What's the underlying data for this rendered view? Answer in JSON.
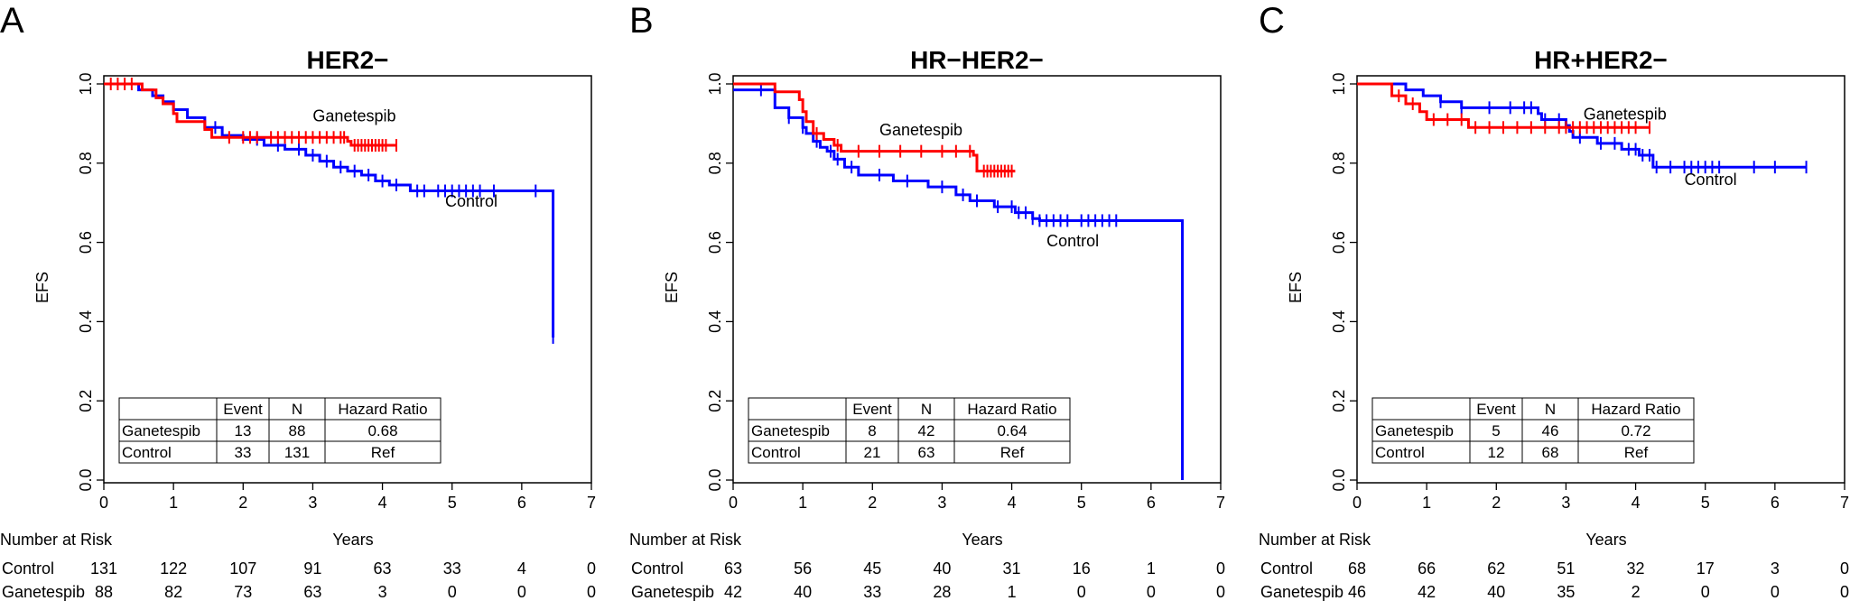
{
  "chart_data": [
    {
      "type": "line",
      "panel_label": "A",
      "title": "HER2−",
      "xlabel": "Years",
      "ylabel": "EFS",
      "xlim": [
        0,
        7
      ],
      "ylim": [
        0,
        1
      ],
      "x_ticks": [
        "0",
        "1",
        "2",
        "3",
        "4",
        "5",
        "6",
        "7"
      ],
      "y_ticks": [
        "0.0",
        "0.2",
        "0.4",
        "0.6",
        "0.8",
        "1.0"
      ],
      "colors": {
        "Control": "#0000ff",
        "Ganetespib": "#ff0000"
      },
      "series": [
        {
          "name": "Control",
          "steps": [
            [
              0,
              1.0
            ],
            [
              0.5,
              0.985
            ],
            [
              0.7,
              0.97
            ],
            [
              0.85,
              0.955
            ],
            [
              1.0,
              0.935
            ],
            [
              1.2,
              0.915
            ],
            [
              1.45,
              0.89
            ],
            [
              1.7,
              0.87
            ],
            [
              2.0,
              0.86
            ],
            [
              2.3,
              0.845
            ],
            [
              2.6,
              0.835
            ],
            [
              2.9,
              0.82
            ],
            [
              3.1,
              0.805
            ],
            [
              3.3,
              0.79
            ],
            [
              3.5,
              0.78
            ],
            [
              3.7,
              0.77
            ],
            [
              3.9,
              0.755
            ],
            [
              4.1,
              0.745
            ],
            [
              4.4,
              0.73
            ],
            [
              6.45,
              0.73
            ],
            [
              6.45,
              0.36
            ]
          ],
          "censor": [
            1.6,
            2.2,
            2.5,
            2.8,
            3.0,
            3.2,
            3.4,
            3.6,
            3.8,
            4.0,
            4.2,
            4.5,
            4.6,
            4.8,
            4.9,
            5.0,
            5.1,
            5.2,
            5.3,
            5.4,
            5.6,
            6.2,
            6.45
          ]
        },
        {
          "name": "Ganetespib",
          "steps": [
            [
              0,
              1.0
            ],
            [
              0.55,
              0.985
            ],
            [
              0.75,
              0.965
            ],
            [
              0.85,
              0.95
            ],
            [
              1.0,
              0.925
            ],
            [
              1.05,
              0.905
            ],
            [
              1.45,
              0.885
            ],
            [
              1.55,
              0.865
            ],
            [
              3.5,
              0.855
            ],
            [
              3.55,
              0.845
            ],
            [
              4.2,
              0.845
            ]
          ],
          "censor": [
            0.1,
            0.2,
            0.3,
            0.4,
            1.8,
            2.0,
            2.1,
            2.2,
            2.4,
            2.5,
            2.6,
            2.7,
            2.8,
            2.9,
            3.0,
            3.1,
            3.2,
            3.3,
            3.4,
            3.45,
            3.6,
            3.65,
            3.7,
            3.75,
            3.8,
            3.85,
            3.9,
            3.95,
            4.0,
            4.05,
            4.2
          ]
        }
      ],
      "annotations": [
        {
          "text": "Ganetespib",
          "x": 3.0,
          "y": 0.905
        },
        {
          "text": "Control",
          "x": 4.9,
          "y": 0.69
        }
      ],
      "table": {
        "headers": [
          "",
          "Event",
          "N",
          "Hazard Ratio"
        ],
        "rows": [
          [
            "Ganetespib",
            "13",
            "88",
            "0.68"
          ],
          [
            "Control",
            "33",
            "131",
            "Ref"
          ]
        ]
      },
      "risk": {
        "label": "Number at Risk",
        "rows": [
          {
            "name": "Control",
            "values": [
              "131",
              "122",
              "107",
              "91",
              "63",
              "33",
              "4",
              "0"
            ]
          },
          {
            "name": "Ganetespib",
            "values": [
              "88",
              "82",
              "73",
              "63",
              "3",
              "0",
              "0",
              "0"
            ]
          }
        ]
      }
    },
    {
      "type": "line",
      "panel_label": "B",
      "title": "HR−HER2−",
      "xlabel": "Years",
      "ylabel": "EFS",
      "xlim": [
        0,
        7
      ],
      "ylim": [
        0,
        1
      ],
      "x_ticks": [
        "0",
        "1",
        "2",
        "3",
        "4",
        "5",
        "6",
        "7"
      ],
      "y_ticks": [
        "0.0",
        "0.2",
        "0.4",
        "0.6",
        "0.8",
        "1.0"
      ],
      "colors": {
        "Control": "#0000ff",
        "Ganetespib": "#ff0000"
      },
      "series": [
        {
          "name": "Control",
          "steps": [
            [
              0,
              0.985
            ],
            [
              0.6,
              0.94
            ],
            [
              0.8,
              0.915
            ],
            [
              1.0,
              0.89
            ],
            [
              1.05,
              0.875
            ],
            [
              1.15,
              0.855
            ],
            [
              1.25,
              0.84
            ],
            [
              1.35,
              0.83
            ],
            [
              1.45,
              0.81
            ],
            [
              1.6,
              0.79
            ],
            [
              1.8,
              0.77
            ],
            [
              2.3,
              0.755
            ],
            [
              2.8,
              0.74
            ],
            [
              3.2,
              0.72
            ],
            [
              3.4,
              0.705
            ],
            [
              3.75,
              0.69
            ],
            [
              4.05,
              0.675
            ],
            [
              4.3,
              0.66
            ],
            [
              4.4,
              0.655
            ],
            [
              6.45,
              0.655
            ],
            [
              6.45,
              0.0
            ]
          ],
          "censor": [
            0.4,
            0.8,
            1.0,
            1.2,
            1.4,
            1.5,
            1.7,
            2.1,
            2.5,
            3.0,
            3.3,
            3.5,
            3.8,
            4.0,
            4.1,
            4.2,
            4.3,
            4.4,
            4.5,
            4.6,
            4.7,
            4.8,
            5.0,
            5.1,
            5.2,
            5.3,
            5.4,
            5.5
          ]
        },
        {
          "name": "Ganetespib",
          "steps": [
            [
              0,
              1.0
            ],
            [
              0.6,
              0.98
            ],
            [
              0.95,
              0.96
            ],
            [
              1.0,
              0.93
            ],
            [
              1.05,
              0.905
            ],
            [
              1.15,
              0.875
            ],
            [
              1.3,
              0.86
            ],
            [
              1.45,
              0.845
            ],
            [
              1.55,
              0.83
            ],
            [
              3.45,
              0.82
            ],
            [
              3.5,
              0.78
            ],
            [
              4.05,
              0.78
            ]
          ],
          "censor": [
            1.2,
            1.5,
            1.8,
            2.1,
            2.4,
            2.7,
            3.0,
            3.2,
            3.4,
            3.6,
            3.65,
            3.7,
            3.75,
            3.8,
            3.85,
            3.9,
            3.95,
            4.0
          ]
        }
      ],
      "annotations": [
        {
          "text": "Ganetespib",
          "x": 2.1,
          "y": 0.87
        },
        {
          "text": "Control",
          "x": 4.5,
          "y": 0.59
        }
      ],
      "table": {
        "headers": [
          "",
          "Event",
          "N",
          "Hazard Ratio"
        ],
        "rows": [
          [
            "Ganetespib",
            "8",
            "42",
            "0.64"
          ],
          [
            "Control",
            "21",
            "63",
            "Ref"
          ]
        ]
      },
      "risk": {
        "label": "Number at Risk",
        "rows": [
          {
            "name": "Control",
            "values": [
              "63",
              "56",
              "45",
              "40",
              "31",
              "16",
              "1",
              "0"
            ]
          },
          {
            "name": "Ganetespib",
            "values": [
              "42",
              "40",
              "33",
              "28",
              "1",
              "0",
              "0",
              "0"
            ]
          }
        ]
      }
    },
    {
      "type": "line",
      "panel_label": "C",
      "title": "HR+HER2−",
      "xlabel": "Years",
      "ylabel": "EFS",
      "xlim": [
        0,
        7
      ],
      "ylim": [
        0,
        1
      ],
      "x_ticks": [
        "0",
        "1",
        "2",
        "3",
        "4",
        "5",
        "6",
        "7"
      ],
      "y_ticks": [
        "0.0",
        "0.2",
        "0.4",
        "0.6",
        "0.8",
        "1.0"
      ],
      "colors": {
        "Control": "#0000ff",
        "Ganetespib": "#ff0000"
      },
      "series": [
        {
          "name": "Control",
          "steps": [
            [
              0,
              1.0
            ],
            [
              0.7,
              0.985
            ],
            [
              0.95,
              0.97
            ],
            [
              1.2,
              0.955
            ],
            [
              1.5,
              0.94
            ],
            [
              2.6,
              0.925
            ],
            [
              2.65,
              0.91
            ],
            [
              3.0,
              0.895
            ],
            [
              3.05,
              0.88
            ],
            [
              3.1,
              0.865
            ],
            [
              3.45,
              0.85
            ],
            [
              3.8,
              0.835
            ],
            [
              4.05,
              0.82
            ],
            [
              4.25,
              0.79
            ],
            [
              6.45,
              0.79
            ]
          ],
          "censor": [
            1.2,
            1.5,
            1.9,
            2.2,
            2.4,
            2.5,
            2.7,
            2.9,
            3.2,
            3.5,
            3.7,
            3.9,
            4.0,
            4.1,
            4.2,
            4.3,
            4.5,
            4.7,
            4.8,
            4.9,
            5.0,
            5.1,
            5.2,
            5.7,
            6.0,
            6.45
          ]
        },
        {
          "name": "Ganetespib",
          "steps": [
            [
              0,
              1.0
            ],
            [
              0.5,
              0.97
            ],
            [
              0.7,
              0.95
            ],
            [
              0.9,
              0.93
            ],
            [
              1.0,
              0.91
            ],
            [
              1.6,
              0.89
            ],
            [
              4.2,
              0.89
            ]
          ],
          "censor": [
            0.6,
            0.8,
            1.1,
            1.3,
            1.5,
            1.7,
            1.9,
            2.1,
            2.3,
            2.5,
            2.7,
            2.9,
            3.0,
            3.1,
            3.2,
            3.3,
            3.4,
            3.5,
            3.6,
            3.7,
            3.8,
            3.9,
            4.0,
            4.2
          ]
        }
      ],
      "annotations": [
        {
          "text": "Ganetespib",
          "x": 3.25,
          "y": 0.91
        },
        {
          "text": "Control",
          "x": 4.7,
          "y": 0.745
        }
      ],
      "table": {
        "headers": [
          "",
          "Event",
          "N",
          "Hazard Ratio"
        ],
        "rows": [
          [
            "Ganetespib",
            "5",
            "46",
            "0.72"
          ],
          [
            "Control",
            "12",
            "68",
            "Ref"
          ]
        ]
      },
      "risk": {
        "label": "Number at Risk",
        "rows": [
          {
            "name": "Control",
            "values": [
              "68",
              "66",
              "62",
              "51",
              "32",
              "17",
              "3",
              "0"
            ]
          },
          {
            "name": "Ganetespib",
            "values": [
              "46",
              "42",
              "40",
              "35",
              "2",
              "0",
              "0",
              "0"
            ]
          }
        ]
      }
    }
  ]
}
